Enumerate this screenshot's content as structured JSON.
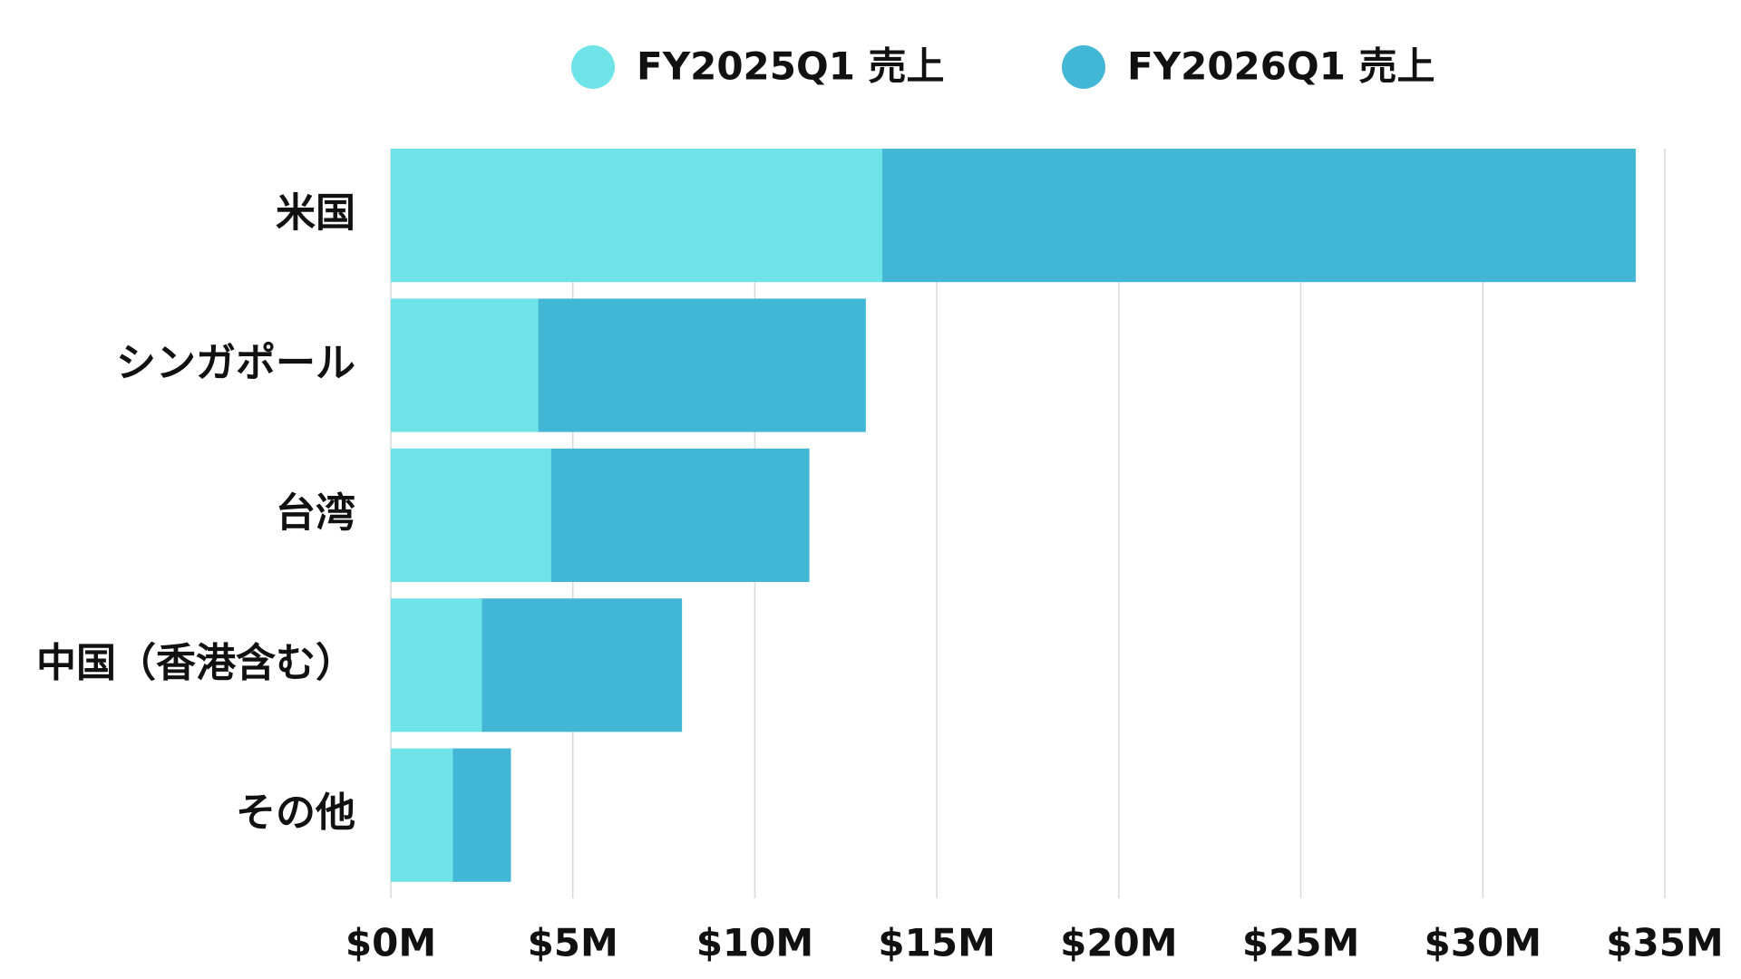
{
  "chart_data": {
    "type": "stacked-bar-horizontal",
    "categories": [
      "米国",
      "シンガポール",
      "台湾",
      "中国（香港含む）",
      "その他"
    ],
    "series": [
      {
        "name": "FY2025Q1 売上",
        "color": "#6ee3e8",
        "values": [
          13.5,
          4.05,
          4.4,
          2.5,
          1.7
        ]
      },
      {
        "name": "FY2026Q1 売上",
        "color": "#42b7d5",
        "values": [
          20.7,
          9.0,
          7.1,
          5.5,
          1.6
        ]
      }
    ],
    "xlim": [
      0,
      35
    ],
    "xticks": [
      {
        "value": 0,
        "label": "$0M"
      },
      {
        "value": 5,
        "label": "$5M"
      },
      {
        "value": 10,
        "label": "$10M"
      },
      {
        "value": 15,
        "label": "$15M"
      },
      {
        "value": 20,
        "label": "$20M"
      },
      {
        "value": 25,
        "label": "$25M"
      },
      {
        "value": 30,
        "label": "$30M"
      },
      {
        "value": 35,
        "label": "$35M"
      }
    ],
    "grid": true,
    "legend": "top"
  }
}
